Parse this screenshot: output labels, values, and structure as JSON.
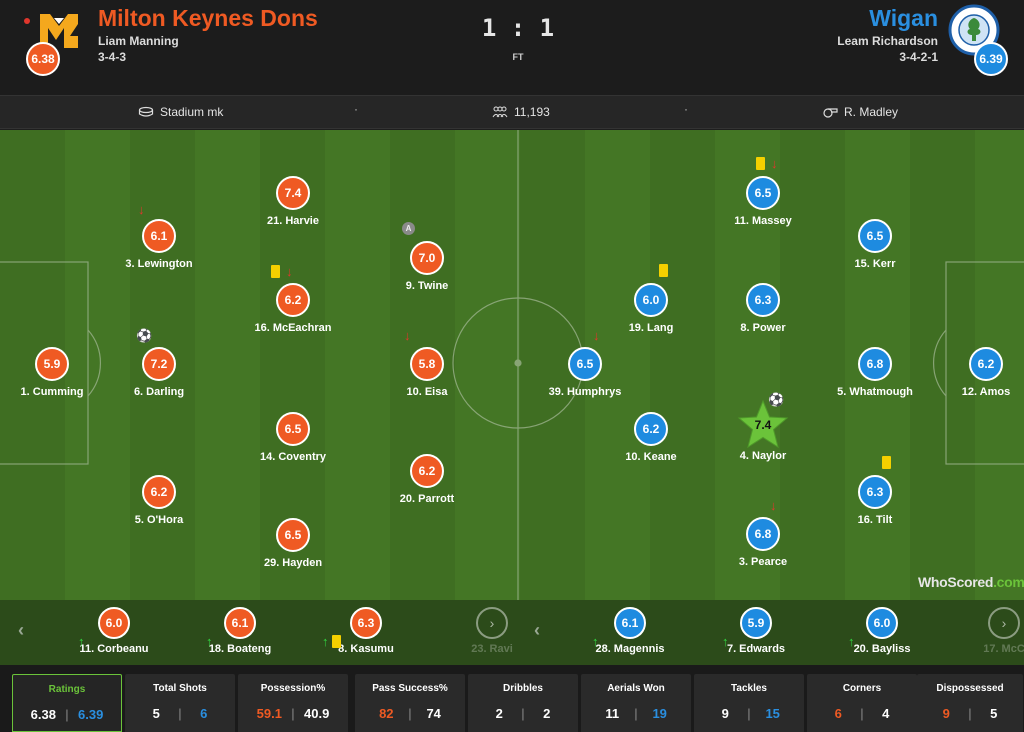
{
  "match": {
    "home": {
      "name": "Milton Keynes Dons",
      "manager": "Liam Manning",
      "formation": "3-4-3",
      "rating": "6.38"
    },
    "away": {
      "name": "Wigan",
      "manager": "Leam Richardson",
      "formation": "3-4-2-1",
      "rating": "6.39"
    },
    "score": "1 : 1",
    "status": "FT"
  },
  "info": {
    "stadium": "Stadium mk",
    "attendance": "11,193",
    "referee": "R. Madley",
    "separator": "·"
  },
  "colors": {
    "home": "#ef5a23",
    "away": "#1e8be0",
    "pitch_a": "#3f6e22",
    "pitch_b": "#447625",
    "accent": "#6bc33a",
    "yellow_card": "#f4d000"
  },
  "home_players": [
    {
      "number_name": "1. Cumming",
      "rating": "5.9"
    },
    {
      "number_name": "3. Lewington",
      "rating": "6.1"
    },
    {
      "number_name": "6. Darling",
      "rating": "7.2"
    },
    {
      "number_name": "5. O'Hora",
      "rating": "6.2"
    },
    {
      "number_name": "21. Harvie",
      "rating": "7.4"
    },
    {
      "number_name": "16. McEachran",
      "rating": "6.2"
    },
    {
      "number_name": "14. Coventry",
      "rating": "6.5"
    },
    {
      "number_name": "29. Hayden",
      "rating": "6.5"
    },
    {
      "number_name": "9. Twine",
      "rating": "7.0"
    },
    {
      "number_name": "10. Eisa",
      "rating": "5.8"
    },
    {
      "number_name": "20. Parrott",
      "rating": "6.2"
    }
  ],
  "away_players": [
    {
      "number_name": "39. Humphrys",
      "rating": "6.5"
    },
    {
      "number_name": "19. Lang",
      "rating": "6.0"
    },
    {
      "number_name": "10. Keane",
      "rating": "6.2"
    },
    {
      "number_name": "11. Massey",
      "rating": "6.5"
    },
    {
      "number_name": "8. Power",
      "rating": "6.3"
    },
    {
      "number_name": "4. Naylor",
      "rating": "7.4"
    },
    {
      "number_name": "3. Pearce",
      "rating": "6.8"
    },
    {
      "number_name": "15. Kerr",
      "rating": "6.5"
    },
    {
      "number_name": "5. Whatmough",
      "rating": "6.8"
    },
    {
      "number_name": "16. Tilt",
      "rating": "6.3"
    },
    {
      "number_name": "12. Amos",
      "rating": "6.2"
    }
  ],
  "captain_mark": "A",
  "home_subs": [
    {
      "number_name": "11. Corbeanu",
      "rating": "6.0"
    },
    {
      "number_name": "18. Boateng",
      "rating": "6.1"
    },
    {
      "number_name": "8. Kasumu",
      "rating": "6.3"
    },
    {
      "number_name": "23. Ravi"
    }
  ],
  "away_subs": [
    {
      "number_name": "28. Magennis",
      "rating": "6.1"
    },
    {
      "number_name": "7. Edwards",
      "rating": "5.9"
    },
    {
      "number_name": "20. Bayliss",
      "rating": "6.0"
    },
    {
      "number_name": "17. McC"
    }
  ],
  "watermark": {
    "brand": "WhoScored",
    "suffix": ".com"
  },
  "stats": [
    {
      "label": "Ratings",
      "home": "6.38",
      "away": "6.39"
    },
    {
      "label": "Total Shots",
      "home": "5",
      "away": "6"
    },
    {
      "label": "Possession%",
      "home": "59.1",
      "away": "40.9"
    },
    {
      "label": "Pass Success%",
      "home": "82",
      "away": "74"
    },
    {
      "label": "Dribbles",
      "home": "2",
      "away": "2"
    },
    {
      "label": "Aerials Won",
      "home": "11",
      "away": "19"
    },
    {
      "label": "Tackles",
      "home": "9",
      "away": "15"
    },
    {
      "label": "Corners",
      "home": "6",
      "away": "4"
    },
    {
      "label": "Dispossessed",
      "home": "9",
      "away": "5"
    }
  ]
}
